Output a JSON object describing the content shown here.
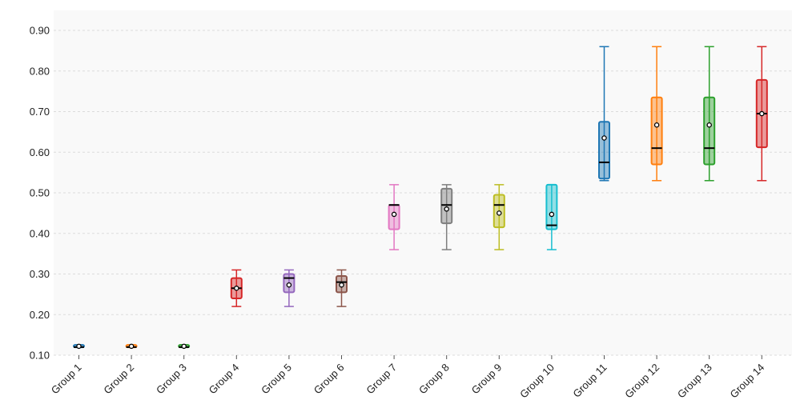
{
  "chart_data": {
    "type": "boxplot",
    "ylim": [
      0.1,
      0.9
    ],
    "yticks": [
      0.1,
      0.2,
      0.3,
      0.4,
      0.5,
      0.6,
      0.7,
      0.8,
      0.9
    ],
    "ytick_labels": [
      "0.10",
      "0.20",
      "0.30",
      "0.40",
      "0.50",
      "0.60",
      "0.70",
      "0.80",
      "0.90"
    ],
    "grid": true,
    "categories": [
      "Group 1",
      "Group 2",
      "Group 3",
      "Group 4",
      "Group 5",
      "Group 6",
      "Group 7",
      "Group 8",
      "Group 9",
      "Group 10",
      "Group 11",
      "Group 12",
      "Group 13",
      "Group 14"
    ],
    "boxes": [
      {
        "min": 0.12,
        "q1": 0.12,
        "median": 0.12,
        "q3": 0.125,
        "max": 0.125,
        "mean": 0.122,
        "color": "#1f77b4"
      },
      {
        "min": 0.12,
        "q1": 0.12,
        "median": 0.12,
        "q3": 0.125,
        "max": 0.125,
        "mean": 0.122,
        "color": "#ff7f0e"
      },
      {
        "min": 0.12,
        "q1": 0.12,
        "median": 0.12,
        "q3": 0.125,
        "max": 0.125,
        "mean": 0.122,
        "color": "#2ca02c"
      },
      {
        "min": 0.22,
        "q1": 0.24,
        "median": 0.265,
        "q3": 0.29,
        "max": 0.31,
        "mean": 0.265,
        "color": "#d62728"
      },
      {
        "min": 0.22,
        "q1": 0.255,
        "median": 0.29,
        "q3": 0.3,
        "max": 0.31,
        "mean": 0.273,
        "color": "#9467bd"
      },
      {
        "min": 0.22,
        "q1": 0.255,
        "median": 0.28,
        "q3": 0.295,
        "max": 0.31,
        "mean": 0.273,
        "color": "#8c564b"
      },
      {
        "min": 0.36,
        "q1": 0.41,
        "median": 0.47,
        "q3": 0.47,
        "max": 0.52,
        "mean": 0.447,
        "color": "#e377c2"
      },
      {
        "min": 0.36,
        "q1": 0.425,
        "median": 0.47,
        "q3": 0.51,
        "max": 0.52,
        "mean": 0.46,
        "color": "#7f7f7f"
      },
      {
        "min": 0.36,
        "q1": 0.415,
        "median": 0.47,
        "q3": 0.495,
        "max": 0.52,
        "mean": 0.45,
        "color": "#bcbd22"
      },
      {
        "min": 0.36,
        "q1": 0.41,
        "median": 0.42,
        "q3": 0.52,
        "max": 0.52,
        "mean": 0.447,
        "color": "#17becf"
      },
      {
        "min": 0.53,
        "q1": 0.535,
        "median": 0.575,
        "q3": 0.675,
        "max": 0.86,
        "mean": 0.635,
        "color": "#1f77b4"
      },
      {
        "min": 0.53,
        "q1": 0.57,
        "median": 0.61,
        "q3": 0.735,
        "max": 0.86,
        "mean": 0.667,
        "color": "#ff7f0e"
      },
      {
        "min": 0.53,
        "q1": 0.57,
        "median": 0.61,
        "q3": 0.735,
        "max": 0.86,
        "mean": 0.667,
        "color": "#2ca02c"
      },
      {
        "min": 0.53,
        "q1": 0.612,
        "median": 0.695,
        "q3": 0.778,
        "max": 0.86,
        "mean": 0.695,
        "color": "#d62728"
      }
    ]
  }
}
